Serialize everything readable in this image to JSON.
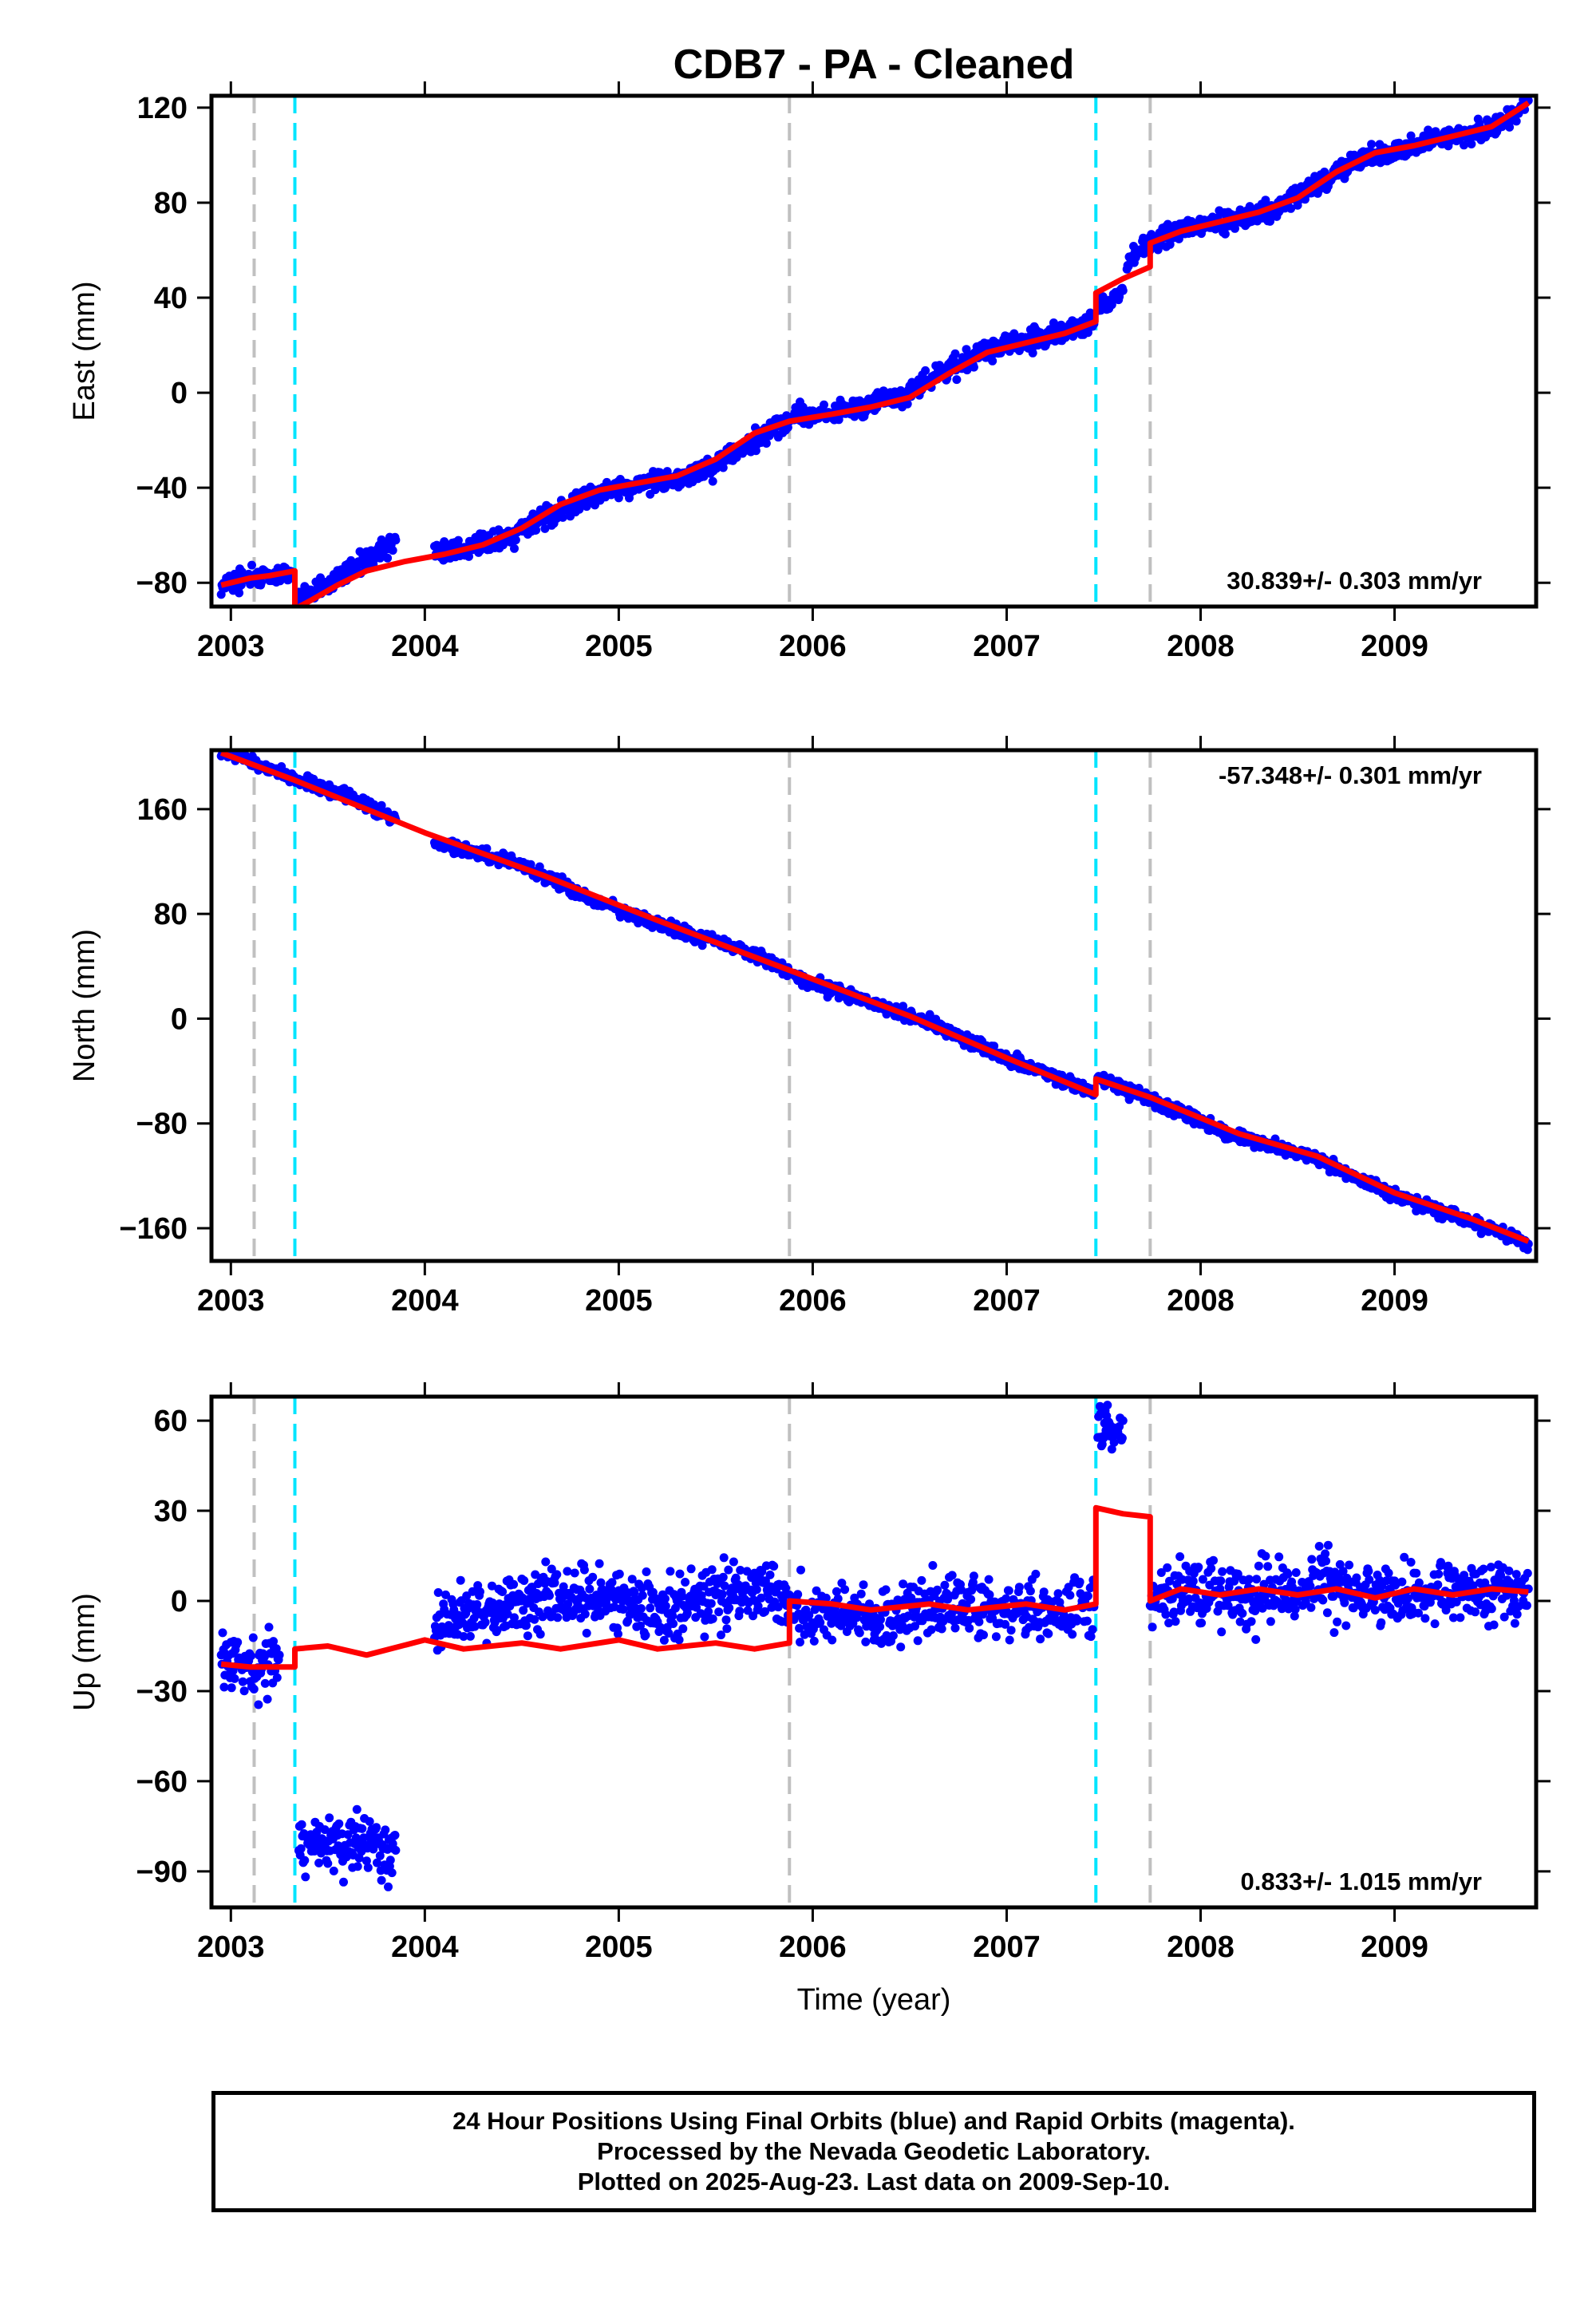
{
  "title": "CDB7  - PA - Cleaned",
  "xlabel": "Time (year)",
  "footer": {
    "line1": "24 Hour Positions Using Final Orbits (blue) and Rapid Orbits (magenta).",
    "line2": "Processed by the Nevada Geodetic Laboratory.",
    "line3": "Plotted on 2025-Aug-23. Last data on 2009-Sep-10."
  },
  "colors": {
    "data_points": "#0000ff",
    "model_fit": "#ff0000",
    "equipment_change": "#00e5ff",
    "earthquake": "#c0c0c0"
  },
  "chart_data": [
    {
      "type": "scatter",
      "ylabel": "East (mm)",
      "xlim": [
        2002.9,
        2009.73
      ],
      "ylim": [
        -90,
        125
      ],
      "xticks": [
        2003,
        2004,
        2005,
        2006,
        2007,
        2008,
        2009
      ],
      "yticks": [
        -80,
        -40,
        0,
        40,
        80,
        120
      ],
      "rate": "30.839+/- 0.303 mm/yr",
      "rate_position": "bottom-right",
      "dashed_gray": [
        2003.12,
        2005.88,
        2007.74
      ],
      "dashed_cyan": [
        2003.33,
        2007.46
      ],
      "series": [
        {
          "role": "observations",
          "segments": [
            {
              "x": [
                2002.95,
                2003.05,
                2003.15,
                2003.25,
                2003.32
              ],
              "y": [
                -82,
                -79,
                -77,
                -77,
                -76
              ]
            },
            {
              "x": [
                2003.35,
                2003.45,
                2003.55,
                2003.65,
                2003.75,
                2003.85
              ],
              "y": [
                -86,
                -82,
                -77,
                -73,
                -68,
                -62
              ]
            },
            {
              "x": [
                2004.05,
                2004.2,
                2004.35,
                2004.5,
                2004.65,
                2004.8,
                2004.95,
                2005.1,
                2005.3,
                2005.5,
                2005.7,
                2005.88
              ],
              "y": [
                -68,
                -66,
                -63,
                -58,
                -52,
                -45,
                -41,
                -39,
                -36,
                -30,
                -20,
                -12
              ]
            },
            {
              "x": [
                2005.9,
                2006.1,
                2006.3,
                2006.5,
                2006.7,
                2006.9,
                2007.1,
                2007.3,
                2007.45
              ],
              "y": [
                -11,
                -8,
                -5,
                0,
                10,
                18,
                22,
                25,
                29
              ]
            },
            {
              "x": [
                2007.47,
                2007.55,
                2007.6
              ],
              "y": [
                36,
                40,
                43
              ]
            },
            {
              "x": [
                2007.62,
                2007.7,
                2007.8,
                2008.0,
                2008.2,
                2008.4,
                2008.6,
                2008.8,
                2009.0,
                2009.2,
                2009.4,
                2009.55,
                2009.69
              ],
              "y": [
                55,
                60,
                66,
                70,
                74,
                78,
                88,
                97,
                102,
                106,
                109,
                113,
                123
              ]
            }
          ]
        },
        {
          "role": "model",
          "segments": [
            {
              "x": [
                2002.95,
                2003.1,
                2003.2,
                2003.33
              ],
              "y": [
                -81,
                -78,
                -77,
                -75
              ]
            },
            {
              "x": [
                2003.33,
                2003.4,
                2003.55,
                2003.7,
                2003.9,
                2004.1,
                2004.3,
                2004.5,
                2004.7,
                2004.9,
                2005.1,
                2005.3,
                2005.5,
                2005.7,
                2005.88
              ],
              "y": [
                -91,
                -88,
                -81,
                -75,
                -71,
                -68,
                -64,
                -57,
                -47,
                -41,
                -38,
                -35,
                -28,
                -17,
                -12
              ]
            },
            {
              "x": [
                2005.88,
                2006.1,
                2006.3,
                2006.5,
                2006.7,
                2006.9,
                2007.1,
                2007.3,
                2007.46
              ],
              "y": [
                -12,
                -9,
                -6,
                -2,
                8,
                17,
                21,
                25,
                30
              ]
            },
            {
              "x": [
                2007.46,
                2007.6,
                2007.74
              ],
              "y": [
                42,
                48,
                53
              ]
            },
            {
              "x": [
                2007.74,
                2007.9,
                2008.1,
                2008.3,
                2008.5,
                2008.7,
                2008.9,
                2009.1,
                2009.3,
                2009.5,
                2009.69
              ],
              "y": [
                63,
                68,
                72,
                76,
                82,
                93,
                101,
                104,
                108,
                112,
                122
              ]
            }
          ]
        }
      ]
    },
    {
      "type": "scatter",
      "ylabel": "North (mm)",
      "xlim": [
        2002.9,
        2009.73
      ],
      "ylim": [
        -185,
        205
      ],
      "xticks": [
        2003,
        2004,
        2005,
        2006,
        2007,
        2008,
        2009
      ],
      "yticks": [
        -160,
        -80,
        0,
        80,
        160
      ],
      "rate": "-57.348+/- 0.301 mm/yr",
      "rate_position": "top-right",
      "dashed_gray": [
        2003.12,
        2005.88,
        2007.74
      ],
      "dashed_cyan": [
        2003.33,
        2007.46
      ],
      "series": [
        {
          "role": "observations",
          "segments": [
            {
              "x": [
                2002.95,
                2003.33,
                2003.6,
                2003.85
              ],
              "y": [
                205,
                183,
                170,
                152
              ]
            },
            {
              "x": [
                2004.05,
                2004.5,
                2004.8,
                2005.2,
                2005.6,
                2005.88
              ],
              "y": [
                135,
                118,
                95,
                72,
                55,
                36
              ]
            },
            {
              "x": [
                2005.9,
                2006.3,
                2006.6,
                2007.0,
                2007.45
              ],
              "y": [
                33,
                12,
                -3,
                -30,
                -55
              ]
            },
            {
              "x": [
                2007.47,
                2007.74,
                2008.2,
                2008.6,
                2009.0,
                2009.4,
                2009.69
              ],
              "y": [
                -45,
                -62,
                -90,
                -107,
                -135,
                -155,
                -172
              ]
            }
          ]
        },
        {
          "role": "model",
          "segments": [
            {
              "x": [
                2002.95,
                2003.33,
                2004.0,
                2004.6,
                2005.2,
                2005.88
              ],
              "y": [
                203,
                182,
                142,
                110,
                75,
                37
              ]
            },
            {
              "x": [
                2005.88,
                2006.5,
                2007.0,
                2007.46
              ],
              "y": [
                37,
                2,
                -30,
                -58
              ]
            },
            {
              "x": [
                2007.46,
                2007.74,
                2008.2,
                2008.6,
                2009.0,
                2009.4,
                2009.69
              ],
              "y": [
                -46,
                -60,
                -88,
                -105,
                -133,
                -153,
                -170
              ]
            }
          ]
        }
      ]
    },
    {
      "type": "scatter",
      "ylabel": "Up (mm)",
      "xlim": [
        2002.9,
        2009.73
      ],
      "ylim": [
        -102,
        68
      ],
      "xticks": [
        2003,
        2004,
        2005,
        2006,
        2007,
        2008,
        2009
      ],
      "yticks": [
        -90,
        -60,
        -30,
        0,
        30,
        60
      ],
      "rate": "0.833+/- 1.015 mm/yr",
      "rate_position": "bottom-right",
      "dashed_gray": [
        2003.12,
        2005.88,
        2007.74
      ],
      "dashed_cyan": [
        2003.33,
        2007.46
      ],
      "series": [
        {
          "role": "observations",
          "segments": [
            {
              "x": [
                2002.95,
                2003.1,
                2003.25
              ],
              "y": [
                -20,
                -24,
                -18
              ]
            },
            {
              "x": [
                2003.35,
                2003.55,
                2003.85
              ],
              "y": [
                -82,
                -80,
                -83
              ]
            },
            {
              "x": [
                2004.05,
                2004.4,
                2004.8,
                2005.2,
                2005.6,
                2005.88
              ],
              "y": [
                -8,
                -2,
                2,
                -4,
                3,
                2
              ]
            },
            {
              "x": [
                2005.9,
                2006.3,
                2006.7,
                2007.1,
                2007.45
              ],
              "y": [
                -3,
                -6,
                0,
                -4,
                -2
              ]
            },
            {
              "x": [
                2007.47,
                2007.55,
                2007.6
              ],
              "y": [
                56,
                58,
                60
              ]
            },
            {
              "x": [
                2007.74,
                2008.1,
                2008.5,
                2008.9,
                2009.3,
                2009.69
              ],
              "y": [
                3,
                2,
                4,
                2,
                3,
                4
              ]
            }
          ]
        },
        {
          "role": "model",
          "segments": [
            {
              "x": [
                2002.95,
                2003.1,
                2003.33
              ],
              "y": [
                -21,
                -22,
                -22
              ]
            },
            {
              "x": [
                2003.33,
                2003.5,
                2003.7,
                2004.0,
                2004.2,
                2004.5,
                2004.7,
                2005.0,
                2005.2,
                2005.5,
                2005.7,
                2005.88
              ],
              "y": [
                -16,
                -15,
                -18,
                -13,
                -16,
                -14,
                -16,
                -13,
                -16,
                -14,
                -16,
                -14
              ]
            },
            {
              "x": [
                2005.88,
                2006.1,
                2006.3,
                2006.6,
                2006.8,
                2007.1,
                2007.3,
                2007.46
              ],
              "y": [
                0,
                -1,
                -3,
                -1,
                -3,
                -1,
                -3,
                -1
              ]
            },
            {
              "x": [
                2007.46,
                2007.6,
                2007.74
              ],
              "y": [
                31,
                29,
                28
              ]
            },
            {
              "x": [
                2007.74,
                2007.9,
                2008.1,
                2008.3,
                2008.5,
                2008.7,
                2008.9,
                2009.1,
                2009.3,
                2009.5,
                2009.69
              ],
              "y": [
                0,
                4,
                2,
                4,
                2,
                4,
                1,
                4,
                2,
                4,
                3
              ]
            }
          ]
        }
      ]
    }
  ]
}
